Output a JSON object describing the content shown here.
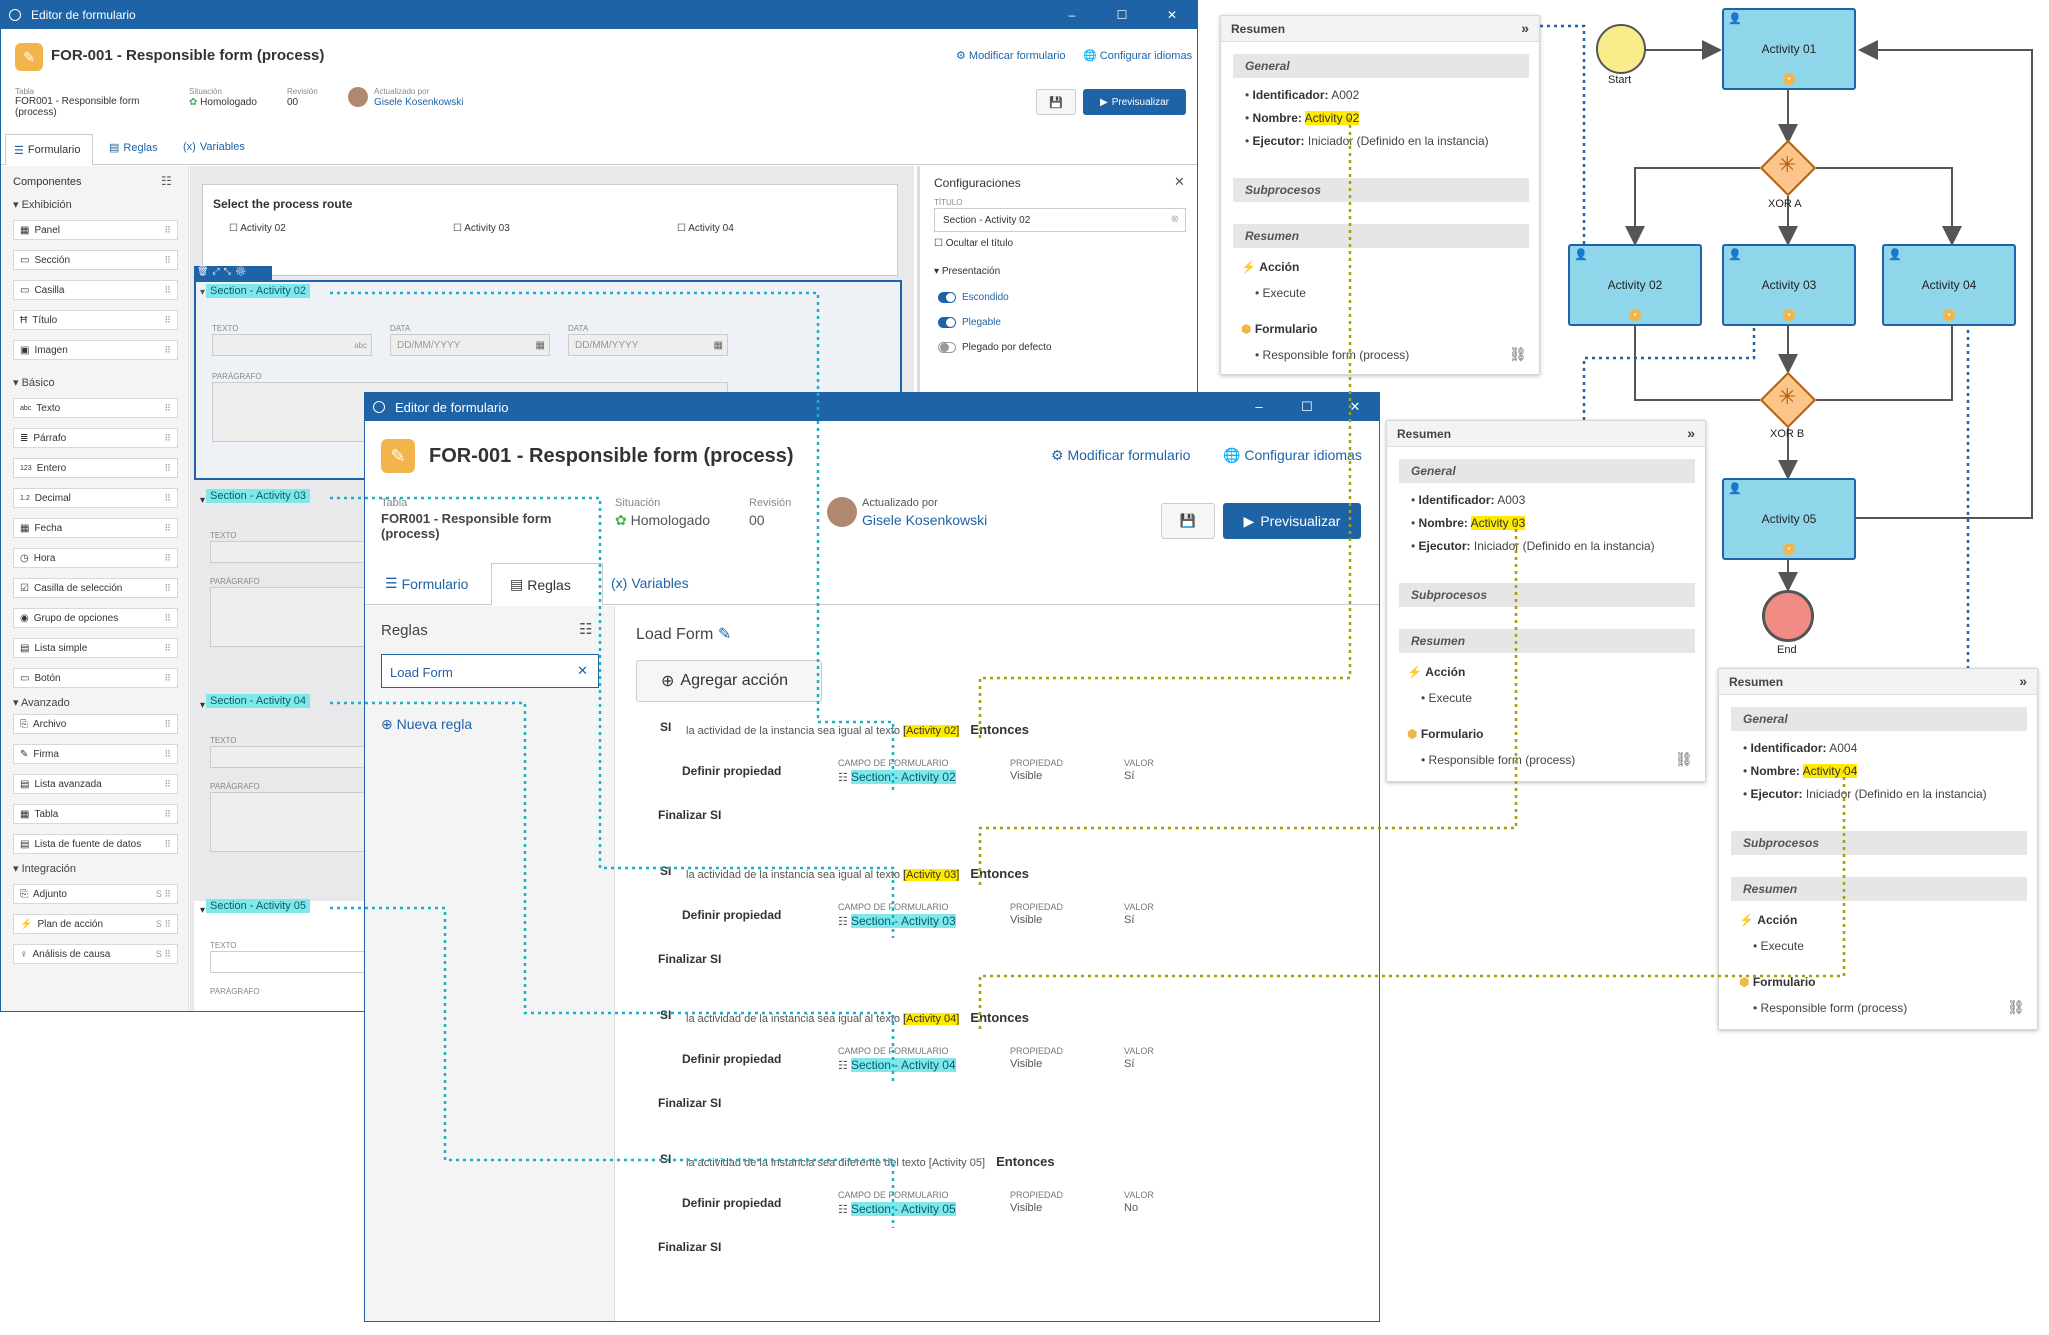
{
  "back_window": {
    "title": "Editor de formulario",
    "form_title": "FOR-001 - Responsible form (process)",
    "modify_link": "Modificar formulario",
    "lang_link": "Configurar idiomas",
    "meta": {
      "tabla_label": "Tabla",
      "tabla_value": "FOR001 - Responsible form (process)",
      "situacion_label": "Situación",
      "situacion_value": "Homologado",
      "revision_label": "Revisión",
      "revision_value": "00",
      "updated_label": "Actualizado por",
      "updated_value": "Gisele Kosenkowski"
    },
    "preview_label": "Previsualizar",
    "tabs": [
      "Formulario",
      "Reglas",
      "Variables"
    ],
    "components_title": "Componentes",
    "categories": {
      "exhibicion": "Exhibición",
      "basico": "Básico",
      "avanzado": "Avanzado",
      "integracion": "Integración"
    },
    "components": {
      "exhibicion": [
        "Panel",
        "Sección",
        "Casilla",
        "Título",
        "Imagen"
      ],
      "basico": [
        "Texto",
        "Párrafo",
        "Entero",
        "Decimal",
        "Fecha",
        "Hora",
        "Casilla de selección",
        "Grupo de opciones",
        "Lista simple",
        "Botón"
      ],
      "avanzado": [
        "Archivo",
        "Firma",
        "Lista avanzada",
        "Tabla",
        "Lista de fuente de datos"
      ],
      "integracion": [
        "Adjunto",
        "Plan de acción",
        "Análisis de causa"
      ]
    },
    "canvas": {
      "route_title": "Select the process route",
      "checks": [
        "Activity 02",
        "Activity 03",
        "Activity 04"
      ],
      "sections": [
        "Section - Activity 02",
        "Section - Activity 03",
        "Section - Activity 04",
        "Section - Activity 05"
      ],
      "field_labels": {
        "texto": "TEXTO",
        "data": "DATA",
        "parrafo": "PARÁGRAFO"
      },
      "date_placeholder": "DD/MM/YYYY",
      "abc": "abc"
    },
    "config": {
      "title": "Configuraciones",
      "titulo_label": "TÍTULO",
      "titulo_value": "Section - Activity 02",
      "hide_title": "Ocultar el título",
      "presentation": "Presentación",
      "toggles": [
        "Escondido",
        "Plegable",
        "Plegado por defecto"
      ]
    }
  },
  "front_window": {
    "title": "Editor de formulario",
    "form_title": "FOR-001 - Responsible form (process)",
    "modify_link": "Modificar formulario",
    "lang_link": "Configurar idiomas",
    "meta": {
      "tabla_label": "Tabla",
      "tabla_value_1": "FOR001 - Responsible form",
      "tabla_value_2": "(process)",
      "situacion_label": "Situación",
      "situacion_value": "Homologado",
      "revision_label": "Revisión",
      "revision_value": "00",
      "updated_label": "Actualizado por",
      "updated_value": "Gisele Kosenkowski"
    },
    "preview_label": "Previsualizar",
    "tabs": [
      "Formulario",
      "Reglas",
      "Variables"
    ],
    "rules_title": "Reglas",
    "rule_item": "Load Form",
    "new_rule": "Nueva regla",
    "rule_name": "Load Form",
    "add_action": "Agregar acción",
    "rules": [
      {
        "si": "SI",
        "cond_pre": "la actividad de la instancia sea igual al texto",
        "cond_val": "[Activity 02]",
        "highlight": true,
        "entonces": "Entonces",
        "action": "Definir propiedad",
        "field_label": "CAMPO DE FORMULARIO",
        "field": "Section - Activity 02",
        "prop_label": "PROPIEDAD",
        "prop": "Visible",
        "val_label": "VALOR",
        "val": "Sí",
        "end": "Finalizar SI"
      },
      {
        "si": "SI",
        "cond_pre": "la actividad de la instancia sea igual al texto",
        "cond_val": "[Activity 03]",
        "highlight": true,
        "entonces": "Entonces",
        "action": "Definir propiedad",
        "field_label": "CAMPO DE FORMULARIO",
        "field": "Section - Activity 03",
        "prop_label": "PROPIEDAD",
        "prop": "Visible",
        "val_label": "VALOR",
        "val": "Sí",
        "end": "Finalizar SI"
      },
      {
        "si": "SI",
        "cond_pre": "la actividad de la instancia sea igual al texto",
        "cond_val": "[Activity 04]",
        "highlight": true,
        "entonces": "Entonces",
        "action": "Definir propiedad",
        "field_label": "CAMPO DE FORMULARIO",
        "field": "Section - Activity 04",
        "prop_label": "PROPIEDAD",
        "prop": "Visible",
        "val_label": "VALOR",
        "val": "Sí",
        "end": "Finalizar SI"
      },
      {
        "si": "SI",
        "cond_pre": "la actividad de la instancia sea diferente del texto",
        "cond_val": "[Activity 05]",
        "highlight": false,
        "entonces": "Entonces",
        "action": "Definir propiedad",
        "field_label": "CAMPO DE FORMULARIO",
        "field": "Section - Activity 05",
        "prop_label": "PROPIEDAD",
        "prop": "Visible",
        "val_label": "VALOR",
        "val": "No",
        "end": "Finalizar SI"
      }
    ]
  },
  "summary_panels": [
    {
      "title": "Resumen",
      "general": "General",
      "id_label": "Identificador:",
      "id": "A002",
      "name_label": "Nombre:",
      "name": "Activity 02",
      "exec_label": "Ejecutor:",
      "exec": "Iniciador (Definido en la instancia)",
      "subprocesos": "Subprocesos",
      "resumen": "Resumen",
      "accion": "Acción",
      "execute": "Execute",
      "formulario": "Formulario",
      "form": "Responsible form (process)"
    },
    {
      "title": "Resumen",
      "general": "General",
      "id_label": "Identificador:",
      "id": "A003",
      "name_label": "Nombre:",
      "name": "Activity 03",
      "exec_label": "Ejecutor:",
      "exec": "Iniciador (Definido en la instancia)",
      "subprocesos": "Subprocesos",
      "resumen": "Resumen",
      "accion": "Acción",
      "execute": "Execute",
      "formulario": "Formulario",
      "form": "Responsible form (process)"
    },
    {
      "title": "Resumen",
      "general": "General",
      "id_label": "Identificador:",
      "id": "A004",
      "name_label": "Nombre:",
      "name": "Activity 04",
      "exec_label": "Ejecutor:",
      "exec": "Iniciador (Definido en la instancia)",
      "subprocesos": "Subprocesos",
      "resumen": "Resumen",
      "accion": "Acción",
      "execute": "Execute",
      "formulario": "Formulario",
      "form": "Responsible form (process)"
    }
  ],
  "diagram": {
    "start": "Start",
    "end": "End",
    "activities": [
      "Activity 01",
      "Activity 02",
      "Activity 03",
      "Activity 04",
      "Activity 05"
    ],
    "gateways": [
      "XOR A",
      "XOR B"
    ]
  },
  "colors": {
    "accent": "#1e63a6",
    "highlight_yellow": "#ffea00",
    "highlight_cyan": "#7ee8ec",
    "activity_fill": "#8fd6ea",
    "form_icon": "#f1b54b"
  }
}
